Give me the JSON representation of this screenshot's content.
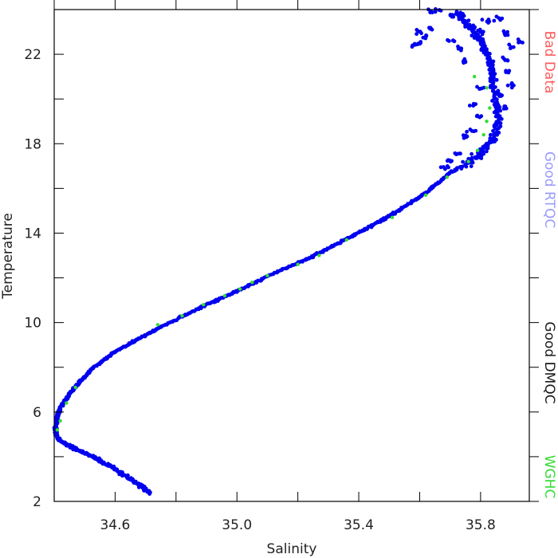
{
  "chart_data": {
    "type": "scatter",
    "title": "",
    "xlabel": "Salinity",
    "ylabel": "Temperature",
    "xlim": [
      34.4,
      35.96
    ],
    "ylim": [
      2,
      24
    ],
    "xticks": [
      34.6,
      35.0,
      35.4,
      35.8
    ],
    "xtick_labels": [
      "34.6",
      "35.0",
      "35.4",
      "35.8"
    ],
    "xminor": [
      34.4,
      34.8,
      35.2,
      35.6
    ],
    "yticks": [
      2,
      6,
      10,
      14,
      18,
      22
    ],
    "ytick_labels": [
      "2",
      "6",
      "10",
      "14",
      "18",
      "22"
    ],
    "yminor": [
      4,
      8,
      12,
      16,
      20,
      24
    ],
    "grid": false,
    "legend": [
      {
        "label": "Bad Data",
        "color": "#ff5a5a"
      },
      {
        "label": "Good RTQC",
        "color": "#9a9aff"
      },
      {
        "label": "Good DMQC",
        "color": "#1a1a1a"
      },
      {
        "label": "WGHC",
        "color": "#33dd33"
      }
    ],
    "legend_placement": "right, vertical text",
    "series": [
      {
        "color": "#0000ee",
        "profile": [
          [
            34.71,
            2.4
          ],
          [
            34.68,
            2.75
          ],
          [
            34.64,
            3.1
          ],
          [
            34.58,
            3.6
          ],
          [
            34.52,
            4.05
          ],
          [
            34.46,
            4.4
          ],
          [
            34.42,
            4.7
          ],
          [
            34.405,
            5.0
          ],
          [
            34.405,
            5.3
          ],
          [
            34.41,
            5.75
          ],
          [
            34.42,
            6.2
          ],
          [
            34.45,
            6.8
          ],
          [
            34.48,
            7.3
          ],
          [
            34.53,
            8.0
          ],
          [
            34.6,
            8.7
          ],
          [
            34.68,
            9.3
          ],
          [
            34.78,
            10.0
          ],
          [
            34.9,
            10.8
          ],
          [
            35.0,
            11.4
          ],
          [
            35.12,
            12.2
          ],
          [
            35.24,
            12.9
          ],
          [
            35.34,
            13.6
          ],
          [
            35.44,
            14.3
          ],
          [
            35.53,
            15.0
          ],
          [
            35.62,
            15.8
          ],
          [
            35.7,
            16.7
          ],
          [
            35.78,
            17.3
          ],
          [
            35.83,
            18.0
          ],
          [
            35.86,
            19.0
          ],
          [
            35.85,
            20.0
          ],
          [
            35.84,
            21.0
          ],
          [
            35.83,
            21.8
          ],
          [
            35.8,
            22.6
          ],
          [
            35.76,
            23.3
          ],
          [
            35.72,
            23.85
          ]
        ],
        "cluster_points": [
          [
            35.75,
            21.7
          ],
          [
            35.73,
            22.3
          ],
          [
            35.62,
            22.8
          ],
          [
            35.64,
            23.2
          ],
          [
            35.6,
            22.5
          ],
          [
            35.7,
            22.6
          ],
          [
            35.88,
            22.9
          ],
          [
            35.9,
            22.3
          ],
          [
            35.93,
            22.6
          ],
          [
            35.88,
            21.8
          ],
          [
            35.89,
            21.2
          ],
          [
            35.9,
            20.6
          ],
          [
            35.87,
            20.2
          ],
          [
            35.8,
            20.5
          ],
          [
            35.78,
            19.7
          ],
          [
            35.79,
            19.2
          ],
          [
            35.88,
            19.6
          ],
          [
            35.77,
            18.6
          ],
          [
            35.75,
            18.3
          ],
          [
            35.72,
            17.6
          ],
          [
            35.7,
            17.2
          ],
          [
            35.68,
            16.9
          ],
          [
            35.82,
            23.5
          ],
          [
            35.8,
            23.0
          ],
          [
            35.86,
            23.6
          ],
          [
            35.66,
            23.9
          ],
          [
            35.64,
            23.95
          ],
          [
            35.7,
            23.7
          ],
          [
            35.58,
            22.4
          ],
          [
            35.6,
            23.0
          ]
        ]
      },
      {
        "name": "WGHC",
        "color": "#33dd33",
        "points": [
          [
            34.41,
            5.2
          ],
          [
            34.42,
            5.6
          ],
          [
            34.44,
            6.4
          ],
          [
            34.47,
            7.1
          ],
          [
            34.74,
            9.9
          ],
          [
            34.82,
            10.3
          ],
          [
            34.89,
            10.8
          ],
          [
            34.96,
            11.2
          ],
          [
            35.01,
            11.5
          ],
          [
            35.05,
            11.8
          ],
          [
            35.1,
            12.1
          ],
          [
            35.2,
            12.6
          ],
          [
            35.27,
            13.0
          ],
          [
            35.36,
            13.7
          ],
          [
            35.51,
            14.7
          ],
          [
            35.62,
            15.7
          ],
          [
            35.69,
            16.5
          ],
          [
            35.76,
            17.2
          ],
          [
            35.79,
            17.7
          ],
          [
            35.81,
            18.4
          ],
          [
            35.82,
            19.0
          ],
          [
            35.83,
            19.6
          ],
          [
            35.82,
            20.5
          ],
          [
            35.78,
            21.0
          ]
        ]
      }
    ]
  }
}
